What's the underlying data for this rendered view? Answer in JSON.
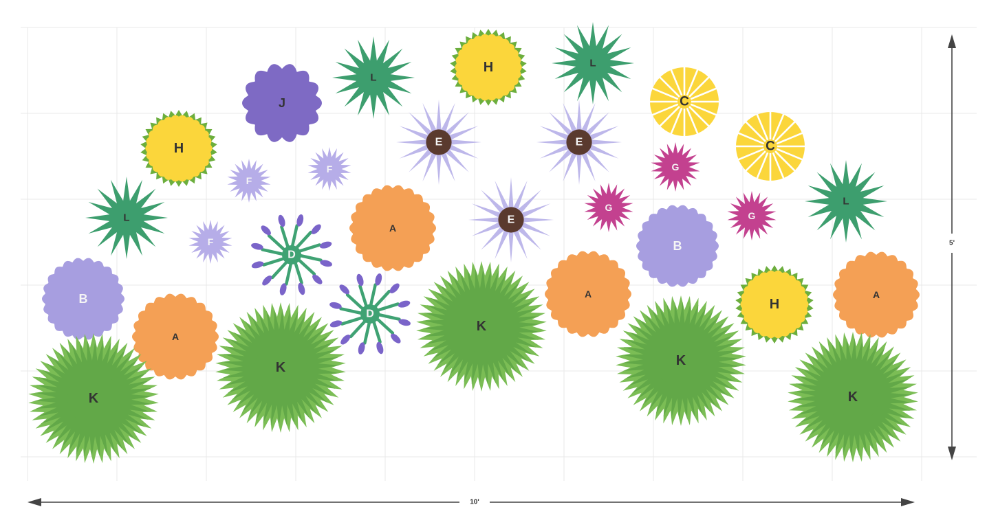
{
  "dimensions": {
    "width_label": "10'",
    "height_label": "5'"
  },
  "colors": {
    "grid": "#e8e8e8",
    "arrow": "#444444",
    "A": "#f4a055",
    "B": "#a79ee0",
    "C": "#fbd63b",
    "D_leaf": "#3fa273",
    "D_bud": "#7a64c9",
    "E_petal": "#bdb7ea",
    "E_center": "#5a3a2e",
    "F": "#b6ade8",
    "G": "#c3418f",
    "H_outer": "#6cae3d",
    "H_inner": "#fbd63b",
    "J": "#7e6ac4",
    "K_outer": "#7bbd55",
    "K_inner": "#62a848",
    "L": "#3d9e6e",
    "label_dark": "#333333",
    "label_light": "#f5f5f5"
  },
  "plants": [
    {
      "label": "J",
      "kind": "wavy",
      "color": "J",
      "labelTone": "dark"
    },
    {
      "label": "L",
      "kind": "star",
      "color": "L",
      "labelTone": "dark"
    },
    {
      "label": "H",
      "kind": "h",
      "labelTone": "dark"
    },
    {
      "label": "L",
      "kind": "star",
      "color": "L",
      "labelTone": "dark"
    },
    {
      "label": "H",
      "kind": "h",
      "labelTone": "dark"
    },
    {
      "label": "C",
      "kind": "pinwheel",
      "color": "C",
      "labelTone": "dark"
    },
    {
      "label": "E",
      "kind": "e",
      "labelTone": "light"
    },
    {
      "label": "E",
      "kind": "e",
      "labelTone": "light"
    },
    {
      "label": "C",
      "kind": "pinwheel",
      "color": "C",
      "labelTone": "dark"
    },
    {
      "label": "F",
      "kind": "star",
      "color": "F",
      "labelTone": "light"
    },
    {
      "label": "F",
      "kind": "star",
      "color": "F",
      "labelTone": "light"
    },
    {
      "label": "G",
      "kind": "star",
      "color": "G",
      "labelTone": "light"
    },
    {
      "label": "L",
      "kind": "star",
      "color": "L",
      "labelTone": "dark"
    },
    {
      "label": "L",
      "kind": "star",
      "color": "L",
      "labelTone": "dark"
    },
    {
      "label": "A",
      "kind": "wavy",
      "color": "A",
      "labelTone": "dark"
    },
    {
      "label": "E",
      "kind": "e",
      "labelTone": "light"
    },
    {
      "label": "G",
      "kind": "star",
      "color": "G",
      "labelTone": "light"
    },
    {
      "label": "G",
      "kind": "star",
      "color": "G",
      "labelTone": "light"
    },
    {
      "label": "F",
      "kind": "star",
      "color": "F",
      "labelTone": "light"
    },
    {
      "label": "D",
      "kind": "d",
      "labelTone": "light"
    },
    {
      "label": "B",
      "kind": "wavy",
      "color": "B",
      "labelTone": "light"
    },
    {
      "label": "B",
      "kind": "wavy",
      "color": "B",
      "labelTone": "light"
    },
    {
      "label": "A",
      "kind": "wavy",
      "color": "A",
      "labelTone": "dark"
    },
    {
      "label": "H",
      "kind": "h",
      "labelTone": "dark"
    },
    {
      "label": "A",
      "kind": "wavy",
      "color": "A",
      "labelTone": "dark"
    },
    {
      "label": "A",
      "kind": "wavy",
      "color": "A",
      "labelTone": "dark"
    },
    {
      "label": "D",
      "kind": "d",
      "labelTone": "light"
    },
    {
      "label": "K",
      "kind": "k",
      "labelTone": "dark"
    },
    {
      "label": "K",
      "kind": "k",
      "labelTone": "dark"
    },
    {
      "label": "K",
      "kind": "k",
      "labelTone": "dark"
    },
    {
      "label": "K",
      "kind": "k",
      "labelTone": "dark"
    },
    {
      "label": "K",
      "kind": "k",
      "labelTone": "dark"
    }
  ]
}
